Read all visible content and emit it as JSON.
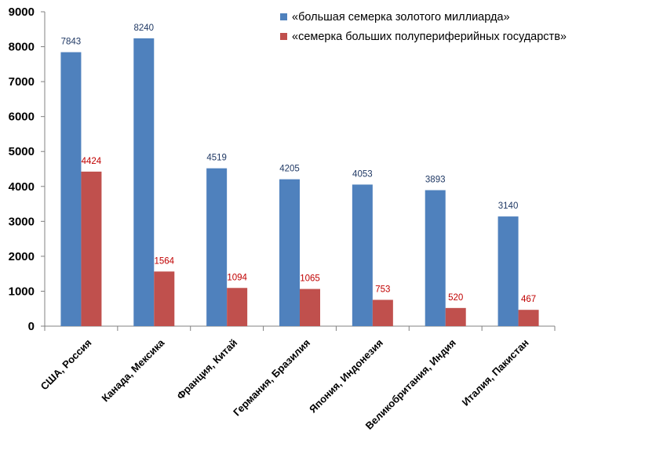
{
  "chart_data": {
    "type": "bar",
    "categories": [
      "США, Россия",
      "Канада, Мексика",
      "Франция, Китай",
      "Германия, Бразилия",
      "Япония, Индонезия",
      "Великобритания, Индия",
      "Италия, Пакистан"
    ],
    "series": [
      {
        "name": "«большая семерка золотого миллиарда»",
        "color": "#4F81BD",
        "label_color": "#1F3864",
        "values": [
          7843,
          8240,
          4519,
          4205,
          4053,
          3893,
          3140
        ]
      },
      {
        "name": "«семерка больших полупериферийных государств»",
        "color": "#C0504D",
        "label_color": "#C00000",
        "values": [
          4424,
          1564,
          1094,
          1065,
          753,
          520,
          467
        ]
      }
    ],
    "ylim": [
      0,
      9000
    ],
    "yticks": [
      0,
      1000,
      2000,
      3000,
      4000,
      5000,
      6000,
      7000,
      8000,
      9000
    ],
    "title": "",
    "xlabel": "",
    "ylabel": "",
    "grid": false,
    "legend_position": "top-right"
  }
}
